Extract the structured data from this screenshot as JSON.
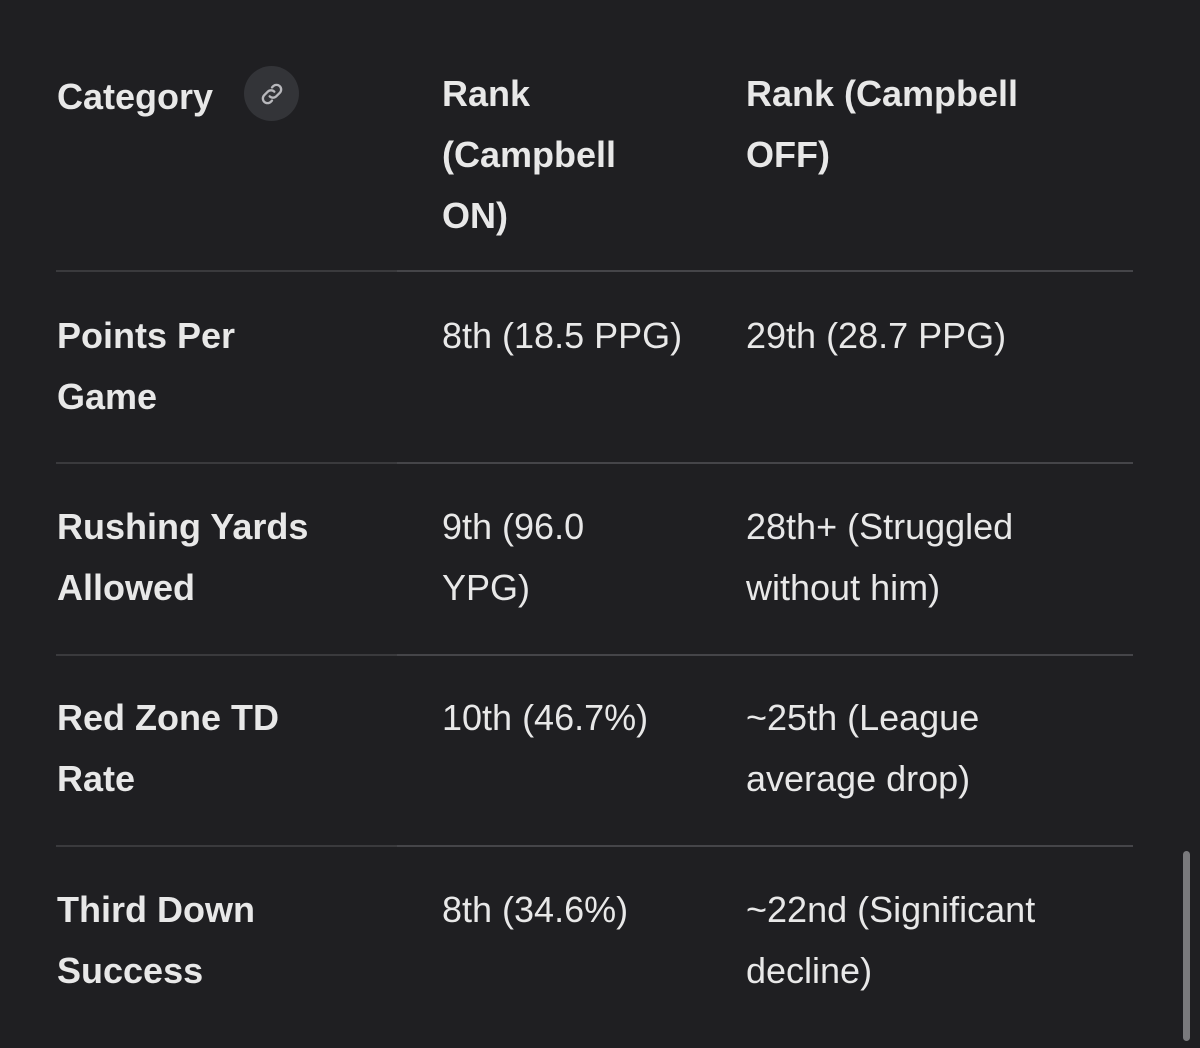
{
  "table": {
    "headers": {
      "category": "Category",
      "rank_on": "Rank (Campbell ON)",
      "rank_off": "Rank (Campbell OFF)"
    },
    "rows": [
      {
        "category": "Points Per Game",
        "rank_on": "8th (18.5 PPG)",
        "rank_off": "29th (28.7 PPG)"
      },
      {
        "category": "Rushing Yards Allowed",
        "rank_on": "9th (96.0 YPG)",
        "rank_off": "28th+ (Struggled without him)"
      },
      {
        "category": "Red Zone TD Rate",
        "rank_on": "10th (46.7%)",
        "rank_off": "~25th (League average drop)"
      },
      {
        "category": "Third Down Success",
        "rank_on": "8th (34.6%)",
        "rank_off": "~22nd (Significant decline)"
      }
    ]
  },
  "icons": {
    "header_link": "link-icon"
  },
  "colors": {
    "background": "#1f1f22",
    "text": "#e8e8e8",
    "divider": "#3a3a3d"
  }
}
